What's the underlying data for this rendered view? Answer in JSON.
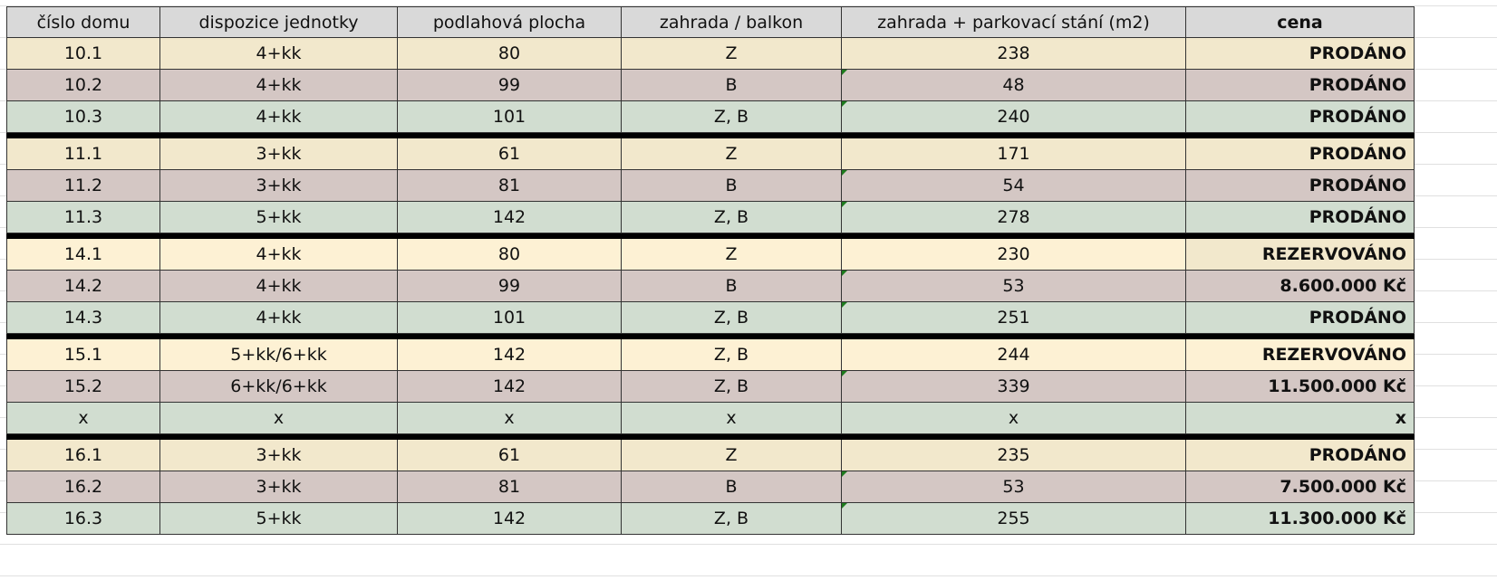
{
  "headers": [
    "číslo domu",
    "dispozice jednotky",
    "podlahová plocha",
    "zahrada / balkon",
    "zahrada + parkovací stání (m2)",
    "cena"
  ],
  "groups": [
    [
      [
        "10.1",
        "4+kk",
        "80",
        "Z",
        "238",
        "PRODÁNO"
      ],
      [
        "10.2",
        "4+kk",
        "99",
        "B",
        "48",
        "PRODÁNO"
      ],
      [
        "10.3",
        "4+kk",
        "101",
        "Z, B",
        "240",
        "PRODÁNO"
      ]
    ],
    [
      [
        "11.1",
        "3+kk",
        "61",
        "Z",
        "171",
        "PRODÁNO"
      ],
      [
        "11.2",
        "3+kk",
        "81",
        "B",
        "54",
        "PRODÁNO"
      ],
      [
        "11.3",
        "5+kk",
        "142",
        "Z, B",
        "278",
        "PRODÁNO"
      ]
    ],
    [
      [
        "14.1",
        "4+kk",
        "80",
        "Z",
        "230",
        "REZERVOVÁNO"
      ],
      [
        "14.2",
        "4+kk",
        "99",
        "B",
        "53",
        "8.600.000 Kč"
      ],
      [
        "14.3",
        "4+kk",
        "101",
        "Z, B",
        "251",
        "PRODÁNO"
      ]
    ],
    [
      [
        "15.1",
        "5+kk/6+kk",
        "142",
        "Z, B",
        "244",
        "REZERVOVÁNO"
      ],
      [
        "15.2",
        "6+kk/6+kk",
        "142",
        "Z, B",
        "339",
        "11.500.000 Kč"
      ],
      [
        "x",
        "x",
        "x",
        "x",
        "x",
        "x"
      ]
    ],
    [
      [
        "16.1",
        "3+kk",
        "61",
        "Z",
        "235",
        "PRODÁNO"
      ],
      [
        "16.2",
        "3+kk",
        "81",
        "B",
        "53",
        "7.500.000 Kč"
      ],
      [
        "16.3",
        "5+kk",
        "142",
        "Z, B",
        "255",
        "11.300.000 Kč"
      ]
    ]
  ],
  "colors": {
    "row1": "#f2e8cc",
    "row2": "#d4c7c4",
    "row3": "#d1ddd0",
    "header": "#d9d9d9",
    "comment_marker": "#1e7b1e"
  }
}
